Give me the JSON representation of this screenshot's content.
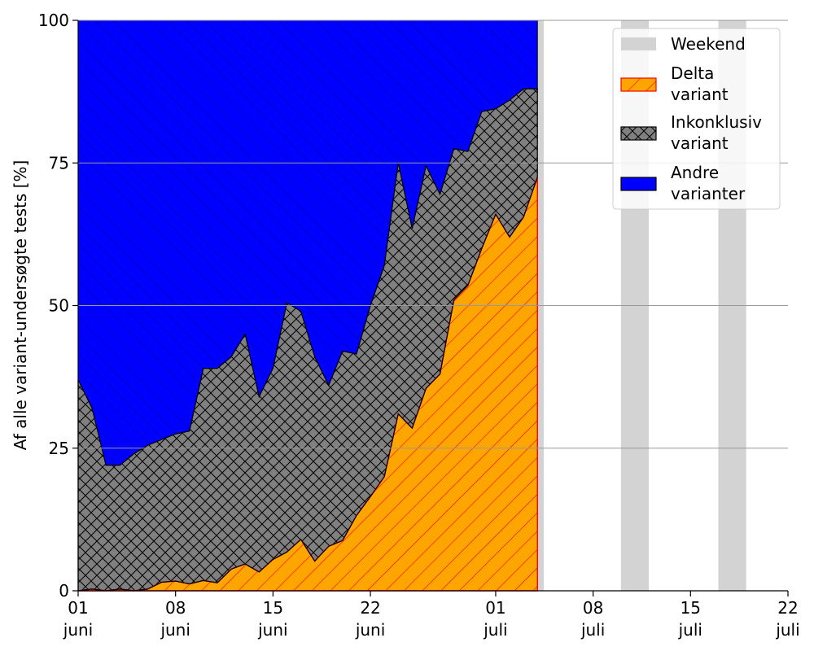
{
  "chart_data": {
    "type": "area",
    "stacked": true,
    "ylabel": "Af alle variant-undersøgte tests [%]",
    "ylim": [
      0,
      100
    ],
    "yticks": [
      0,
      25,
      50,
      75,
      100
    ],
    "xlim": [
      "2021-06-01",
      "2021-07-22"
    ],
    "xticks": [
      {
        "date": "2021-06-01",
        "line1": "01",
        "line2": "juni"
      },
      {
        "date": "2021-06-08",
        "line1": "08",
        "line2": "juni"
      },
      {
        "date": "2021-06-15",
        "line1": "15",
        "line2": "juni"
      },
      {
        "date": "2021-06-22",
        "line1": "22",
        "line2": "juni"
      },
      {
        "date": "2021-07-01",
        "line1": "01",
        "line2": "juli"
      },
      {
        "date": "2021-07-08",
        "line1": "08",
        "line2": "juli"
      },
      {
        "date": "2021-07-15",
        "line1": "15",
        "line2": "juli"
      },
      {
        "date": "2021-07-22",
        "line1": "22",
        "line2": "juli"
      }
    ],
    "grid": "horizontal",
    "legend_position": "top-right",
    "x": [
      "2021-06-01",
      "2021-06-02",
      "2021-06-03",
      "2021-06-04",
      "2021-06-05",
      "2021-06-06",
      "2021-06-07",
      "2021-06-08",
      "2021-06-09",
      "2021-06-10",
      "2021-06-11",
      "2021-06-12",
      "2021-06-13",
      "2021-06-14",
      "2021-06-15",
      "2021-06-16",
      "2021-06-17",
      "2021-06-18",
      "2021-06-19",
      "2021-06-20",
      "2021-06-21",
      "2021-06-22",
      "2021-06-23",
      "2021-06-24",
      "2021-06-25",
      "2021-06-26",
      "2021-06-27",
      "2021-06-28",
      "2021-06-29",
      "2021-06-30",
      "2021-07-01",
      "2021-07-02",
      "2021-07-03",
      "2021-07-04"
    ],
    "series": [
      {
        "key": "delta",
        "name": "Delta\nvariant",
        "color": "#FFA500",
        "edge": "#FF0000",
        "hatch": "diagonal",
        "values": [
          0,
          0.3,
          0,
          0.3,
          0,
          0.3,
          1.5,
          1.7,
          1.2,
          1.8,
          1.4,
          3.8,
          4.7,
          3.3,
          5.5,
          6.8,
          9.0,
          5.2,
          7.8,
          8.8,
          13.2,
          16.5,
          20.0,
          31.0,
          28.5,
          35.5,
          38.0,
          51.0,
          53.5,
          60.0,
          66.0,
          62.0,
          65.5,
          72.5
        ]
      },
      {
        "key": "inconclusive",
        "name": "Inkonklusiv\nvariant",
        "color": "#808080",
        "edge": "#000000",
        "hatch": "cross",
        "cumulative_top": [
          37.0,
          32.0,
          22.0,
          22.0,
          24.0,
          25.5,
          26.5,
          27.5,
          28.0,
          39.0,
          39.0,
          41.0,
          45.0,
          34.0,
          39.0,
          50.5,
          49.0,
          41.0,
          36.0,
          42.0,
          41.5,
          50.0,
          57.0,
          75.0,
          63.5,
          74.5,
          69.5,
          77.5,
          77.0,
          84.0,
          84.5,
          86.0,
          88.0,
          88.0
        ]
      },
      {
        "key": "other",
        "name": "Andre\nvarianter",
        "color": "#0000FF",
        "edge": "#0000FF",
        "hatch": "diagonal-back",
        "cumulative_top": 100
      },
      {
        "key": "weekend",
        "name": "Weekend",
        "color": "#D3D3D3",
        "spans": [
          [
            "2021-07-04",
            "2021-07-04"
          ],
          [
            "2021-07-10",
            "2021-07-11"
          ],
          [
            "2021-07-17",
            "2021-07-18"
          ]
        ]
      }
    ],
    "legend_order": [
      "weekend",
      "delta",
      "inconclusive",
      "other"
    ]
  }
}
